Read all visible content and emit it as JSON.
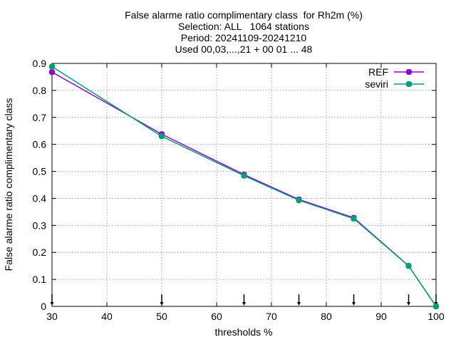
{
  "chart_data": {
    "type": "line",
    "title_lines": [
      "False alarme ratio complimentary class  for Rh2m (%)",
      "Selection: ALL   1064 stations",
      "Period: 20241109-20241210",
      "Used 00,03,...,21 + 00 01 ... 48"
    ],
    "xlabel": "thresholds %",
    "ylabel": "False alarme ratio complimentary class",
    "xlim": [
      30,
      100
    ],
    "ylim": [
      0,
      0.9
    ],
    "xticks": [
      30,
      40,
      50,
      60,
      70,
      80,
      90,
      100
    ],
    "yticks": [
      0,
      0.1,
      0.2,
      0.3,
      0.4,
      0.5,
      0.6,
      0.7,
      0.8,
      0.9
    ],
    "ytick_labels": [
      "0",
      "0.1",
      "0.2",
      "0.3",
      "0.4",
      "0.5",
      "0.6",
      "0.7",
      "0.8",
      "0.9"
    ],
    "grid": true,
    "legend_position": "top-right",
    "threshold_markers": [
      30,
      50,
      65,
      75,
      85,
      95,
      100
    ],
    "series": [
      {
        "name": "REF",
        "color": "#9400d3",
        "x": [
          30,
          50,
          65,
          75,
          85,
          95,
          100
        ],
        "y": [
          0.868,
          0.638,
          0.488,
          0.396,
          0.328,
          0.15,
          0.0
        ]
      },
      {
        "name": "seviri",
        "color": "#009e73",
        "x": [
          30,
          50,
          65,
          75,
          85,
          95,
          100
        ],
        "y": [
          0.888,
          0.63,
          0.484,
          0.393,
          0.325,
          0.15,
          0.0
        ]
      }
    ]
  }
}
